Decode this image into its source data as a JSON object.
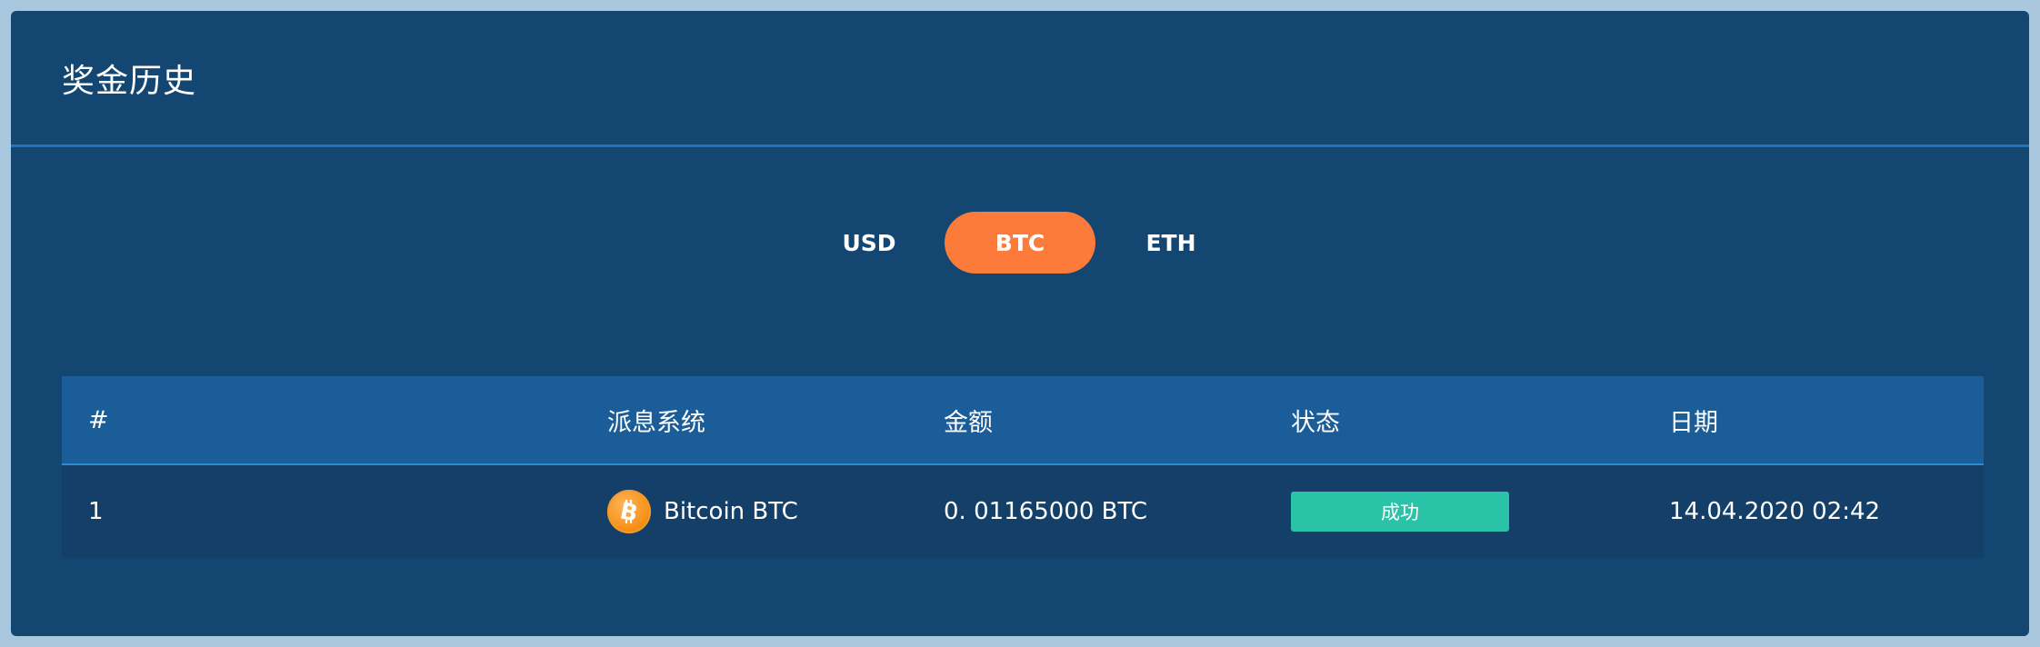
{
  "page": {
    "title": "奖金历史"
  },
  "tabs": [
    {
      "label": "USD",
      "active": false
    },
    {
      "label": "BTC",
      "active": true
    },
    {
      "label": "ETH",
      "active": false
    }
  ],
  "table": {
    "headers": [
      "#",
      "派息系统",
      "金额",
      "状态",
      "日期"
    ],
    "rows": [
      {
        "index": "1",
        "system_icon": "bitcoin-icon",
        "system": "Bitcoin BTC",
        "amount": "0. 01165000 BTC",
        "status": "成功",
        "date": "14.04.2020 02:42"
      }
    ]
  },
  "colors": {
    "panel_bg": "#144672",
    "active_tab": "#fd7b3a",
    "header_row": "#1a5d98",
    "status_success": "#2bc3a8",
    "bitcoin": "#f7931a"
  }
}
